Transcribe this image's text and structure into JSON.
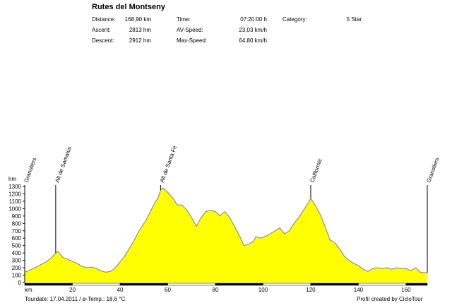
{
  "header": {
    "title": "Rutes del Montseny",
    "stats": [
      {
        "label": "Distance:",
        "value": "168,90 km"
      },
      {
        "label": "Ascent:",
        "value": "2813 hm"
      },
      {
        "label": "Descent:",
        "value": "2912 hm"
      },
      {
        "label": "Time:",
        "value": "07:20:00 h"
      },
      {
        "label": "AV-Speed:",
        "value": "23,03 km/h"
      },
      {
        "label": "Max-Speed:",
        "value": "64,80 km/h"
      },
      {
        "label": "Category:",
        "value": "5 Star"
      }
    ]
  },
  "footer": {
    "tourdate": "Tourdate: 17.04.2011  /  ø-Temp.: 18,6 °C",
    "credit": "Profil created by CicloTour"
  },
  "colors": {
    "fill": "#ffff00",
    "line": "#7f7f7f",
    "axis": "#000000"
  },
  "chart_data": {
    "type": "area",
    "xlabel": "km",
    "ylabel": "hm",
    "xlim": [
      0,
      168.9
    ],
    "ylim": [
      0,
      1300
    ],
    "x_ticks": [
      20,
      40,
      60,
      80,
      100,
      120,
      140,
      160
    ],
    "y_ticks": [
      0,
      100,
      200,
      300,
      400,
      500,
      600,
      700,
      800,
      900,
      1000,
      1100,
      1200,
      1300
    ],
    "grid": false,
    "series": [
      {
        "x": [
          0,
          3,
          6,
          9,
          11,
          13,
          14,
          16,
          19,
          22,
          24,
          26,
          28,
          30,
          32,
          34,
          36,
          38,
          40,
          42,
          45,
          48,
          51,
          53,
          55,
          56,
          57,
          58,
          60,
          62,
          64,
          66,
          68,
          70,
          72,
          74,
          76,
          78,
          80,
          82,
          83,
          84,
          86,
          88,
          90,
          92,
          94,
          96,
          97,
          99,
          102,
          105,
          107,
          109,
          111,
          113,
          115,
          117,
          119,
          120,
          122,
          124,
          126,
          128,
          130,
          132,
          134,
          136,
          138,
          140,
          142,
          144,
          146,
          148,
          150,
          152,
          154,
          156,
          158,
          160,
          162,
          164,
          166,
          168.9
        ],
        "y": [
          140,
          180,
          230,
          280,
          330,
          400,
          420,
          340,
          300,
          260,
          220,
          200,
          210,
          190,
          160,
          140,
          150,
          200,
          280,
          360,
          520,
          700,
          850,
          980,
          1100,
          1150,
          1250,
          1280,
          1220,
          1150,
          1050,
          1050,
          980,
          880,
          760,
          880,
          960,
          980,
          960,
          900,
          940,
          960,
          880,
          760,
          640,
          500,
          520,
          560,
          620,
          600,
          640,
          700,
          740,
          660,
          700,
          800,
          880,
          980,
          1080,
          1140,
          1040,
          920,
          760,
          580,
          540,
          460,
          360,
          300,
          260,
          230,
          180,
          150,
          190,
          200,
          190,
          200,
          180,
          200,
          190,
          190,
          160,
          200,
          140,
          130
        ]
      }
    ],
    "annotations": [
      {
        "label": "Granollers",
        "x": 0
      },
      {
        "label": "Alt de Samalús",
        "x": 13
      },
      {
        "label": "Alt de Santa Fe",
        "x": 57
      },
      {
        "label": "Collformic",
        "x": 120
      },
      {
        "label": "Granollers",
        "x": 168.9
      }
    ]
  }
}
